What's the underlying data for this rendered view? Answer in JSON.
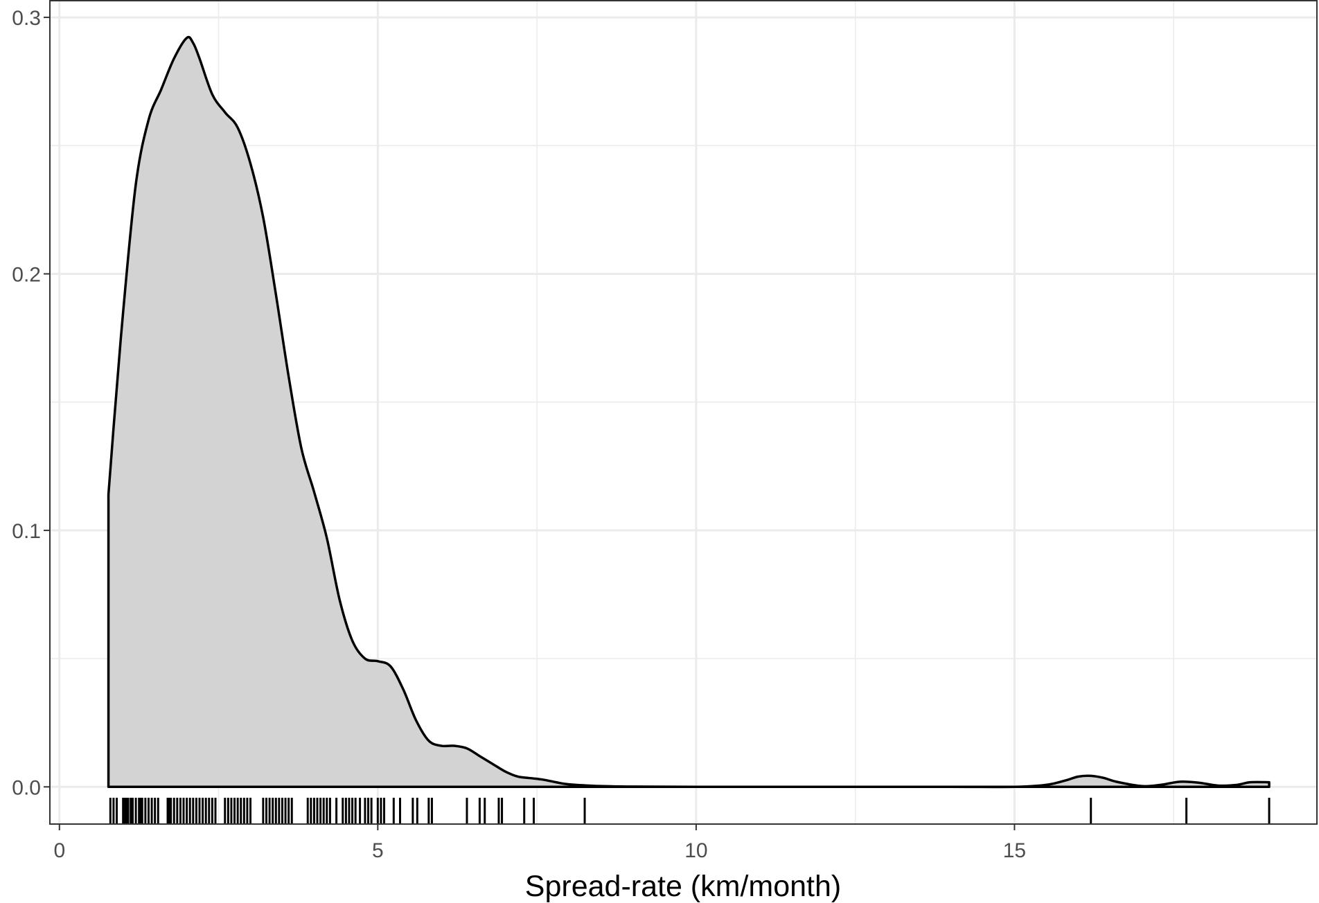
{
  "chart_data": {
    "type": "area",
    "title": "",
    "xlabel": "Spread-rate (km/month)",
    "ylabel": "",
    "xlim": [
      -0.15,
      19.75
    ],
    "ylim": [
      -0.0145,
      0.3065
    ],
    "x_ticks": [
      0,
      5,
      10,
      15
    ],
    "x_tick_labels": [
      "0",
      "5",
      "10",
      "15"
    ],
    "y_ticks": [
      0.0,
      0.1,
      0.2,
      0.3
    ],
    "y_tick_labels": [
      "0.0",
      "0.1",
      "0.2",
      "0.3"
    ],
    "x_minor_ticks": [
      2.5,
      7.5,
      12.5,
      17.5
    ],
    "y_minor_ticks": [
      0.05,
      0.15,
      0.25
    ],
    "grid": true,
    "fill_color": "#d3d3d3",
    "line_color": "#000000",
    "density": {
      "x": [
        0.77,
        0.85,
        1.0,
        1.2,
        1.4,
        1.6,
        1.8,
        2.0,
        2.1,
        2.2,
        2.4,
        2.6,
        2.8,
        3.0,
        3.2,
        3.4,
        3.6,
        3.8,
        4.0,
        4.2,
        4.4,
        4.6,
        4.8,
        5.0,
        5.2,
        5.4,
        5.6,
        5.8,
        6.0,
        6.2,
        6.4,
        6.6,
        6.8,
        7.0,
        7.2,
        7.4,
        7.6,
        7.8,
        8.0,
        8.5,
        9.0,
        10.0,
        12.0,
        14.0,
        15.0,
        15.5,
        15.8,
        16.0,
        16.2,
        16.4,
        16.6,
        17.0,
        17.3,
        17.6,
        17.9,
        18.2,
        18.5,
        18.7,
        19.0
      ],
      "y": [
        0.114,
        0.14,
        0.185,
        0.235,
        0.26,
        0.272,
        0.284,
        0.292,
        0.29,
        0.284,
        0.27,
        0.263,
        0.257,
        0.243,
        0.222,
        0.192,
        0.16,
        0.132,
        0.115,
        0.097,
        0.073,
        0.057,
        0.05,
        0.049,
        0.047,
        0.038,
        0.026,
        0.018,
        0.016,
        0.016,
        0.015,
        0.012,
        0.009,
        0.006,
        0.004,
        0.0034,
        0.0028,
        0.0018,
        0.001,
        0.0003,
        0.0001,
        0.0,
        0.0,
        0.0,
        0.0,
        0.0008,
        0.0025,
        0.004,
        0.0043,
        0.0035,
        0.002,
        0.0003,
        0.0008,
        0.002,
        0.0016,
        0.0005,
        0.0008,
        0.0018,
        0.0018
      ]
    },
    "rug": [
      0.8,
      0.85,
      0.9,
      1.0,
      1.02,
      1.05,
      1.08,
      1.12,
      1.15,
      1.2,
      1.25,
      1.28,
      1.3,
      1.35,
      1.4,
      1.45,
      1.5,
      1.55,
      1.7,
      1.72,
      1.75,
      1.8,
      1.85,
      1.9,
      1.95,
      2.0,
      2.05,
      2.1,
      2.15,
      2.2,
      2.25,
      2.3,
      2.35,
      2.4,
      2.45,
      2.6,
      2.65,
      2.7,
      2.75,
      2.8,
      2.85,
      2.9,
      2.95,
      3.0,
      3.2,
      3.25,
      3.3,
      3.35,
      3.4,
      3.45,
      3.5,
      3.55,
      3.6,
      3.65,
      3.9,
      3.95,
      4.0,
      4.05,
      4.1,
      4.15,
      4.2,
      4.25,
      4.35,
      4.45,
      4.5,
      4.55,
      4.6,
      4.65,
      4.72,
      4.8,
      4.85,
      4.9,
      5.0,
      5.05,
      5.1,
      5.25,
      5.35,
      5.55,
      5.62,
      5.8,
      5.85,
      6.4,
      6.6,
      6.68,
      6.9,
      6.95,
      7.3,
      7.45,
      8.25,
      16.2,
      17.7,
      19.0
    ]
  }
}
